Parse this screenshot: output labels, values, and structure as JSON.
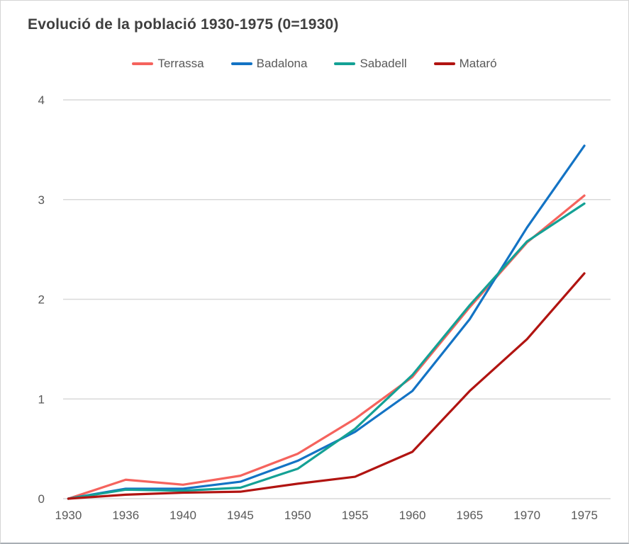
{
  "chart_data": {
    "type": "line",
    "title": "Evolució de la població 1930-1975 (0=1930)",
    "categories": [
      "1930",
      "1936",
      "1940",
      "1945",
      "1950",
      "1955",
      "1960",
      "1965",
      "1970",
      "1975"
    ],
    "series": [
      {
        "name": "Terrassa",
        "color": "#f5635d",
        "values": [
          0,
          0.19,
          0.14,
          0.23,
          0.45,
          0.8,
          1.22,
          1.92,
          2.57,
          3.04
        ]
      },
      {
        "name": "Badalona",
        "color": "#1373c4",
        "values": [
          0,
          0.1,
          0.1,
          0.17,
          0.38,
          0.67,
          1.08,
          1.8,
          2.72,
          3.54
        ]
      },
      {
        "name": "Sabadell",
        "color": "#14a195",
        "values": [
          0,
          0.09,
          0.08,
          0.11,
          0.3,
          0.7,
          1.24,
          1.94,
          2.58,
          2.96
        ]
      },
      {
        "name": "Mataró",
        "color": "#b11411",
        "values": [
          0,
          0.04,
          0.06,
          0.07,
          0.15,
          0.22,
          0.47,
          1.08,
          1.6,
          2.26
        ]
      }
    ],
    "xlabel": "",
    "ylabel": "",
    "y_ticks": [
      0,
      1,
      2,
      3,
      4
    ],
    "ylim": [
      0,
      4
    ],
    "grid": true,
    "legend_position": "top",
    "style_colors": {
      "title_text": "#3f3f3f",
      "axis_text": "#595959",
      "gridline": "#d9d9d9",
      "background": "#ffffff",
      "frame_border": "#d4d4d4"
    }
  }
}
